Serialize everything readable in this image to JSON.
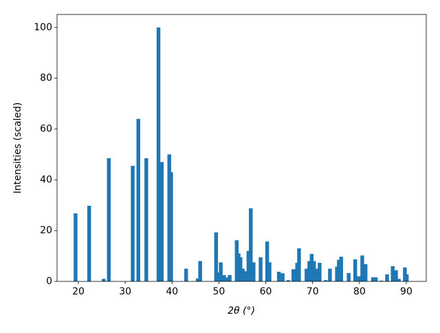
{
  "chart_data": {
    "type": "bar",
    "xlabel": "2θ (°)",
    "ylabel": "Intensities (scaled)",
    "color": "#1f77b4",
    "bar_width": 0.8,
    "x": [
      19.4,
      22.3,
      25.4,
      26.5,
      31.6,
      32.8,
      34.5,
      37.1,
      37.8,
      39.4,
      39.8,
      43.0,
      45.5,
      46.0,
      49.4,
      50.0,
      50.4,
      51.1,
      51.7,
      52.3,
      53.8,
      54.2,
      54.6,
      55.1,
      55.8,
      56.3,
      56.8,
      57.4,
      58.9,
      60.3,
      60.8,
      62.8,
      63.6,
      64.8,
      65.9,
      66.7,
      67.1,
      68.7,
      69.3,
      69.8,
      70.3,
      70.8,
      71.5,
      72.8,
      73.7,
      75.2,
      75.6,
      76.1,
      77.7,
      79.1,
      79.9,
      80.6,
      81.3,
      82.9,
      83.5,
      84.7,
      85.9,
      87.1,
      87.8,
      88.4,
      89.7,
      90.1
    ],
    "values": [
      26.8,
      29.8,
      1,
      48.5,
      45.5,
      64,
      48.5,
      100,
      47,
      50,
      43,
      5,
      1.2,
      8,
      19.3,
      3.5,
      7.5,
      2.5,
      1.5,
      2.5,
      16.2,
      11,
      9.5,
      5,
      4,
      12,
      28.8,
      7.5,
      9.5,
      15.7,
      7.5,
      3.8,
      3.2,
      0.5,
      4.8,
      7.3,
      13,
      5,
      8,
      10.8,
      8,
      5,
      7.3,
      0.5,
      5,
      5.8,
      8.5,
      9.7,
      3.3,
      8.7,
      2,
      10.2,
      6.8,
      1.6,
      1.6,
      0.3,
      2.8,
      6,
      4.4,
      1,
      5.5,
      2.8
    ],
    "xlim": [
      15.45,
      94.26
    ],
    "ylim": [
      0,
      105.1
    ],
    "xticks": [
      20,
      30,
      40,
      50,
      60,
      70,
      80,
      90
    ],
    "yticks": [
      0,
      20,
      40,
      60,
      80,
      100
    ]
  }
}
